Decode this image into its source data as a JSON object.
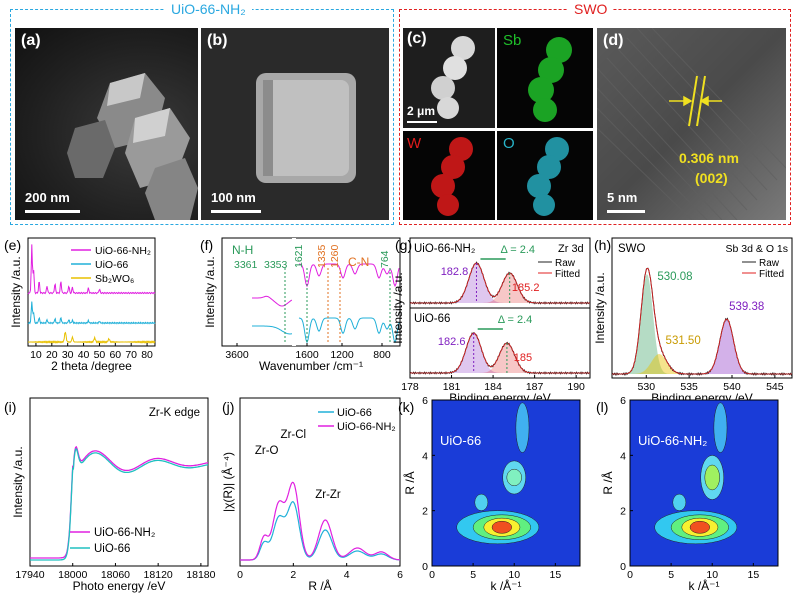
{
  "header": {
    "left_title": "UiO-66-NH₂",
    "right_title": "SWO"
  },
  "micrographs": {
    "a": {
      "label": "(a)",
      "scale": "200 nm"
    },
    "b": {
      "label": "(b)",
      "scale": "100 nm"
    },
    "c": {
      "label": "(c)",
      "scale": "2 μm",
      "maps": [
        "Sb",
        "W",
        "O"
      ],
      "map_colors": [
        "#1fbf2a",
        "#e01b1b",
        "#28b4c8"
      ]
    },
    "d": {
      "label": "(d)",
      "scale": "5 nm",
      "spacing": "0.306 nm",
      "plane": "(002)"
    }
  },
  "colors": {
    "blue_box": "#2aa8e0",
    "red_box": "#e02020",
    "magenta": "#e020e0",
    "cyan": "#20b0d8",
    "yellow": "#e8c000",
    "green": "#2a9a5a",
    "orange": "#e07020",
    "purple": "#8020c0",
    "red": "#e02020"
  },
  "chart_data": [
    {
      "panel": "(e)",
      "type": "line",
      "xlabel": "2 theta /degree",
      "ylabel": "Intensity /a.u.",
      "xticks": [
        "10",
        "20",
        "30",
        "40",
        "50",
        "60",
        "70",
        "80"
      ],
      "xlim": [
        5,
        85
      ],
      "series": [
        {
          "name": "UiO-66-NH₂",
          "color": "#e020e0"
        },
        {
          "name": "UiO-66",
          "color": "#20b0d8"
        },
        {
          "name": "Sb₂WO₆",
          "color": "#e8c000"
        }
      ]
    },
    {
      "panel": "(f)",
      "type": "line",
      "xlabel": "Wavenumber /cm⁻¹",
      "ylabel": "Intensity /a.u.",
      "xticks": [
        "3600",
        "1600",
        "1200",
        "800"
      ],
      "annotations": [
        "N-H",
        "3361",
        "3353",
        "1621",
        "1335",
        "1260",
        "C-N",
        "764"
      ]
    },
    {
      "panel": "(g)",
      "type": "line",
      "xlabel": "Binding energy /eV",
      "ylabel": "Intensity /a.u.",
      "xticks": [
        "178",
        "181",
        "184",
        "187",
        "190"
      ],
      "xlim": [
        178,
        191
      ],
      "title": "Zr 3d",
      "legend": [
        "Raw",
        "Fitted"
      ],
      "subplots": [
        {
          "name": "UiO-66-NH₂",
          "peaks": [
            182.8,
            185.2
          ],
          "delta": "Δ = 2.4"
        },
        {
          "name": "UiO-66",
          "peaks": [
            182.6,
            185.0
          ],
          "delta": "Δ = 2.4"
        }
      ]
    },
    {
      "panel": "(h)",
      "type": "line",
      "xlabel": "Binding energy /eV",
      "ylabel": "Intensity /a.u.",
      "xticks": [
        "530",
        "535",
        "540",
        "545"
      ],
      "xlim": [
        526,
        547
      ],
      "title": "Sb 3d & O 1s",
      "sample": "SWO",
      "legend": [
        "Raw",
        "Fitted"
      ],
      "peaks": [
        530.08,
        531.5,
        539.38
      ]
    },
    {
      "panel": "(i)",
      "type": "line",
      "xlabel": "Photo energy /eV",
      "ylabel": "Intensity /a.u.",
      "xticks": [
        "17940",
        "18000",
        "18060",
        "18120",
        "18180"
      ],
      "xlim": [
        17940,
        18190
      ],
      "title": "Zr-K edge",
      "series": [
        {
          "name": "UiO-66-NH₂",
          "color": "#e020e0"
        },
        {
          "name": "UiO-66",
          "color": "#20c0c0"
        }
      ]
    },
    {
      "panel": "(j)",
      "type": "line",
      "xlabel": "R /Å",
      "ylabel": "|χ(R)| (Å⁻⁴)",
      "xticks": [
        "0",
        "2",
        "4",
        "6"
      ],
      "xlim": [
        0,
        6
      ],
      "annotations": [
        "Zr-O",
        "Zr-Cl",
        "Zr-Zr"
      ],
      "series": [
        {
          "name": "UiO-66",
          "color": "#20b0d8"
        },
        {
          "name": "UiO-66-NH₂",
          "color": "#e020e0"
        }
      ]
    },
    {
      "panel": "(k)",
      "type": "heatmap",
      "xlabel": "k /Å⁻¹",
      "ylabel": "R /Å",
      "xticks": [
        "0",
        "5",
        "10",
        "15"
      ],
      "yticks": [
        "0",
        "2",
        "4",
        "6"
      ],
      "xlim": [
        0,
        18
      ],
      "ylim": [
        0,
        6
      ],
      "name": "UiO-66"
    },
    {
      "panel": "(l)",
      "type": "heatmap",
      "xlabel": "k /Å⁻¹",
      "ylabel": "R /Å",
      "xticks": [
        "0",
        "5",
        "10",
        "15"
      ],
      "yticks": [
        "0",
        "2",
        "4",
        "6"
      ],
      "xlim": [
        0,
        18
      ],
      "ylim": [
        0,
        6
      ],
      "name": "UiO-66-NH₂"
    }
  ],
  "panel_labels": [
    "(e)",
    "(f)",
    "(g)",
    "(h)",
    "(i)",
    "(j)",
    "(k)",
    "(l)"
  ]
}
